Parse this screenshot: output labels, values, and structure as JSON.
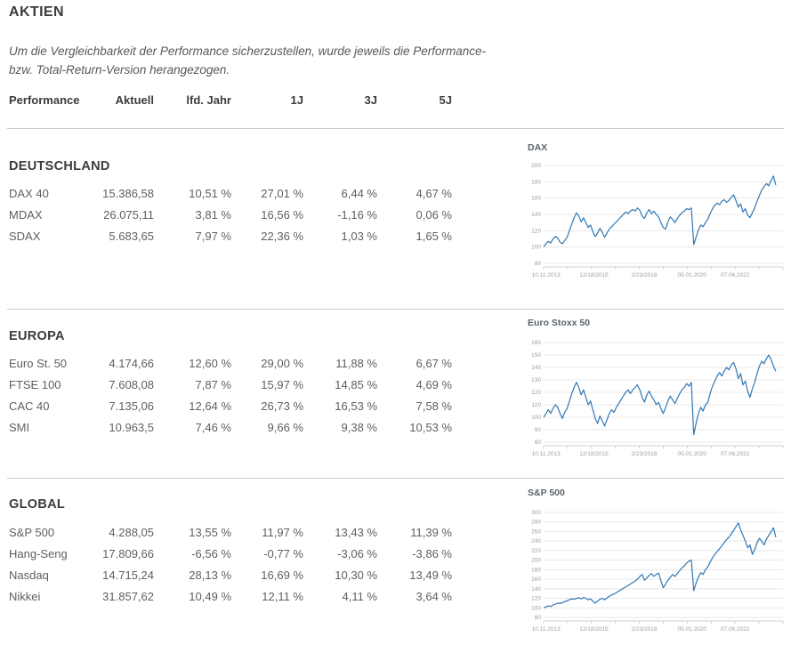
{
  "page": {
    "title": "AKTIEN"
  },
  "disclaimer": {
    "line1": "Um die Vergleichbarkeit der Performance sicherzustellen, wurde jeweils die Performance-",
    "line2": "bzw. Total-Return-Version herangezogen."
  },
  "table": {
    "headers": [
      "Performance",
      "Aktuell",
      "lfd. Jahr",
      "1J",
      "3J",
      "5J"
    ]
  },
  "sections": [
    {
      "title": "DEUTSCHLAND",
      "rows": [
        {
          "label": "DAX 40",
          "values": [
            "15.386,58",
            "10,51 %",
            "27,01 %",
            "6,44 %",
            "4,67 %"
          ]
        },
        {
          "label": "MDAX",
          "values": [
            "26.075,11",
            "3,81 %",
            "16,56 %",
            "-1,16 %",
            "0,06 %"
          ]
        },
        {
          "label": "SDAX",
          "values": [
            "5.683,65",
            "7,97 %",
            "22,36 %",
            "1,03 %",
            "1,65 %"
          ]
        }
      ]
    },
    {
      "title": "EUROPA",
      "rows": [
        {
          "label": "Euro St. 50",
          "values": [
            "4.174,66",
            "12,60 %",
            "29,00 %",
            "11,88 %",
            "6,67 %"
          ]
        },
        {
          "label": "FTSE 100",
          "values": [
            "7.608,08",
            "7,87 %",
            "15,97 %",
            "14,85 %",
            "4,69 %"
          ]
        },
        {
          "label": "CAC 40",
          "values": [
            "7.135,06",
            "12,64 %",
            "26,73 %",
            "16,53 %",
            "7,58 %"
          ]
        },
        {
          "label": "SMI",
          "values": [
            "10.963,5",
            "7,46 %",
            "9,66 %",
            "9,38 %",
            "10,53 %"
          ]
        }
      ]
    },
    {
      "title": "GLOBAL",
      "rows": [
        {
          "label": "S&P 500",
          "values": [
            "4.288,05",
            "13,55 %",
            "11,97 %",
            "13,43 %",
            "11,39 %"
          ]
        },
        {
          "label": "Hang-Seng",
          "values": [
            "17.809,66",
            "-6,56 %",
            "-0,77 %",
            "-3,06 %",
            "-3,86 %"
          ]
        },
        {
          "label": "Nasdaq",
          "values": [
            "14.715,24",
            "28,13 %",
            "16,69 %",
            "10,30 %",
            "13,49 %"
          ]
        },
        {
          "label": "Nikkei",
          "values": [
            "31.857,62",
            "10,49 %",
            "12,11 %",
            "4,11 %",
            "3,64 %"
          ]
        }
      ]
    }
  ],
  "colors": {
    "line": "#3077b4",
    "grid": "#e8e8e8",
    "axis": "#cfcfcf",
    "tick_text": "#9e9e9e"
  },
  "chart_data": [
    {
      "type": "line",
      "title": "DAX",
      "ylim": [
        80,
        200
      ],
      "y_step": 20,
      "x_labels": [
        "10.11.2013",
        "12/18/2015",
        "2/23/2018",
        "05.01.2020",
        "07.06.2022"
      ],
      "values": [
        100,
        104,
        107,
        105,
        110,
        113,
        111,
        106,
        104,
        108,
        112,
        120,
        128,
        136,
        142,
        138,
        131,
        136,
        130,
        124,
        127,
        119,
        113,
        117,
        123,
        118,
        112,
        117,
        122,
        125,
        128,
        131,
        134,
        137,
        140,
        143,
        141,
        144,
        146,
        144,
        148,
        145,
        138,
        135,
        142,
        146,
        141,
        144,
        140,
        137,
        130,
        124,
        122,
        131,
        137,
        134,
        130,
        135,
        139,
        142,
        144,
        147,
        146,
        148,
        103,
        112,
        121,
        127,
        125,
        130,
        134,
        141,
        147,
        151,
        154,
        152,
        156,
        158,
        155,
        157,
        161,
        164,
        157,
        149,
        153,
        143,
        147,
        139,
        136,
        142,
        148,
        156,
        163,
        170,
        174,
        178,
        175,
        182,
        187,
        176
      ]
    },
    {
      "type": "line",
      "title": "Euro Stoxx 50",
      "ylim": [
        80,
        160
      ],
      "y_step": 10,
      "x_labels": [
        "10.11.2013",
        "12/18/2015",
        "2/23/2018",
        "05.01.2020",
        "07.06.2022"
      ],
      "values": [
        100,
        103,
        106,
        103,
        107,
        110,
        108,
        103,
        99,
        104,
        107,
        113,
        119,
        124,
        128,
        124,
        118,
        122,
        116,
        110,
        113,
        106,
        99,
        95,
        101,
        97,
        93,
        98,
        103,
        106,
        104,
        108,
        111,
        114,
        117,
        120,
        122,
        119,
        122,
        124,
        126,
        122,
        116,
        112,
        118,
        121,
        117,
        114,
        110,
        112,
        107,
        103,
        108,
        113,
        117,
        114,
        111,
        115,
        119,
        122,
        124,
        127,
        125,
        128,
        86,
        95,
        103,
        108,
        105,
        110,
        112,
        119,
        125,
        129,
        133,
        136,
        133,
        137,
        140,
        138,
        142,
        144,
        139,
        131,
        135,
        126,
        129,
        121,
        116,
        123,
        128,
        135,
        141,
        145,
        143,
        147,
        150,
        146,
        141,
        137
      ]
    },
    {
      "type": "line",
      "title": "S&P 500",
      "ylim": [
        80,
        300
      ],
      "y_step": 20,
      "x_labels": [
        "10.11.2013",
        "12/18/2015",
        "2/23/2018",
        "05.01.2020",
        "07.06.2022"
      ],
      "values": [
        100,
        102,
        104,
        103,
        106,
        108,
        110,
        109,
        111,
        113,
        115,
        117,
        119,
        118,
        120,
        121,
        119,
        122,
        120,
        117,
        119,
        114,
        110,
        114,
        118,
        120,
        117,
        121,
        124,
        127,
        129,
        132,
        135,
        138,
        141,
        144,
        147,
        150,
        153,
        156,
        160,
        166,
        170,
        158,
        163,
        168,
        172,
        166,
        170,
        173,
        157,
        142,
        150,
        158,
        164,
        170,
        166,
        172,
        178,
        184,
        188,
        194,
        198,
        200,
        136,
        152,
        165,
        174,
        170,
        180,
        186,
        196,
        205,
        212,
        218,
        224,
        230,
        237,
        243,
        248,
        255,
        262,
        270,
        278,
        264,
        252,
        240,
        226,
        232,
        212,
        222,
        236,
        246,
        240,
        232,
        244,
        252,
        260,
        268,
        248
      ]
    }
  ]
}
